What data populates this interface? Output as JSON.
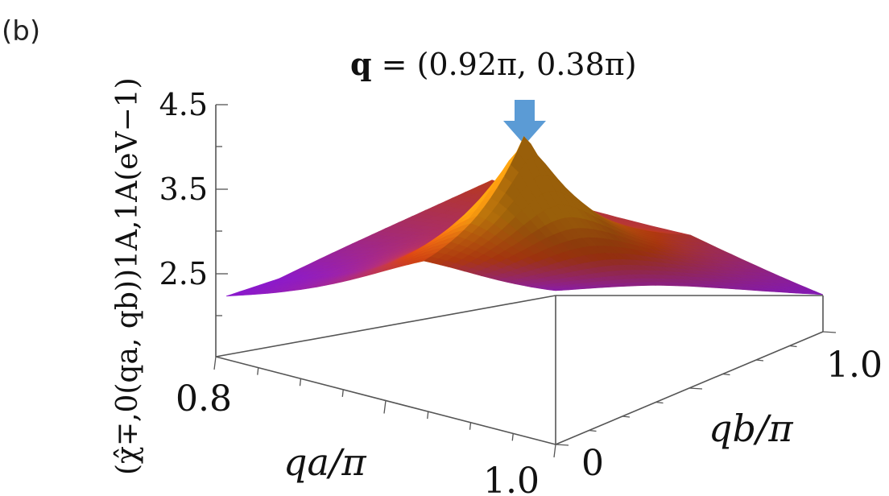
{
  "panel_label": "(b)",
  "annotation": {
    "bold": "q",
    "rest": " = (0.92π, 0.38π)",
    "arrow_color": "#5b9bd5"
  },
  "colors": {
    "low": "#9a19ff",
    "high": "#ff9e10"
  },
  "chart_data": {
    "type": "surface3d",
    "zlabel": "(χ̂∓,0(qa, qb))1A,1A(eV−1)",
    "xlabel": "qa/π",
    "ylabel": "qb/π",
    "z_ticks": [
      "4.5",
      "3.5",
      "2.5"
    ],
    "qa_ticks": [
      "0.8",
      "1.0"
    ],
    "qb_ticks": [
      "0",
      "1.0"
    ],
    "qa_range": [
      0.8,
      1.0
    ],
    "qb_range": [
      0.0,
      1.0
    ],
    "zlim": [
      1.8,
      4.5
    ],
    "peak": {
      "qa": 0.92,
      "qb": 0.38,
      "z": 3.85
    },
    "base_value": 2.35,
    "samples": [
      {
        "qa": 0.8,
        "qb": 0.0,
        "z": 2.4
      },
      {
        "qa": 0.8,
        "qb": 1.0,
        "z": 3.0
      },
      {
        "qa": 1.0,
        "qb": 0.0,
        "z": 2.35
      },
      {
        "qa": 1.0,
        "qb": 1.0,
        "z": 2.3
      },
      {
        "qa": 0.92,
        "qb": 0.38,
        "z": 3.85
      }
    ]
  }
}
